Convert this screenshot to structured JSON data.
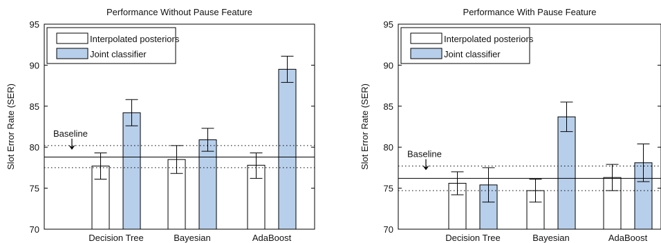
{
  "chart_data": [
    {
      "type": "bar",
      "title": "Performance Without Pause Feature",
      "xlabel": "",
      "ylabel": "Slot Error Rate (SER)",
      "ylim": [
        70,
        95
      ],
      "yticks": [
        70,
        75,
        80,
        85,
        90,
        95
      ],
      "categories": [
        "Decision Tree",
        "Bayesian",
        "AdaBoost"
      ],
      "legend_position": "top-left",
      "grid": false,
      "series": [
        {
          "name": "Interpolated posteriors",
          "color": "#ffffff",
          "values": [
            77.7,
            78.5,
            77.8
          ],
          "err_low": [
            76.1,
            76.8,
            76.2
          ],
          "err_high": [
            79.3,
            80.2,
            79.3
          ]
        },
        {
          "name": "Joint classifier",
          "color": "#b7cfeb",
          "values": [
            84.2,
            80.9,
            89.5
          ],
          "err_low": [
            82.6,
            79.5,
            87.9
          ],
          "err_high": [
            85.8,
            82.3,
            91.1
          ]
        }
      ],
      "baseline": {
        "label": "Baseline",
        "value": 78.8,
        "lower": 77.5,
        "upper": 80.2
      }
    },
    {
      "type": "bar",
      "title": "Performance With Pause Feature",
      "xlabel": "",
      "ylabel": "Slot Error Rate (SER)",
      "ylim": [
        70,
        95
      ],
      "yticks": [
        70,
        75,
        80,
        85,
        90,
        95
      ],
      "categories": [
        "Decision Tree",
        "Bayesian",
        "AdaBoost"
      ],
      "legend_position": "top-left",
      "grid": false,
      "series": [
        {
          "name": "Interpolated posteriors",
          "color": "#ffffff",
          "values": [
            75.6,
            74.7,
            76.3
          ],
          "err_low": [
            74.2,
            73.3,
            74.7
          ],
          "err_high": [
            77.0,
            76.1,
            77.9
          ]
        },
        {
          "name": "Joint classifier",
          "color": "#b7cfeb",
          "values": [
            75.4,
            83.7,
            78.1
          ],
          "err_low": [
            73.3,
            81.9,
            75.8
          ],
          "err_high": [
            77.5,
            85.5,
            80.4
          ]
        }
      ],
      "baseline": {
        "label": "Baseline",
        "value": 76.2,
        "lower": 74.7,
        "upper": 77.7
      }
    }
  ]
}
